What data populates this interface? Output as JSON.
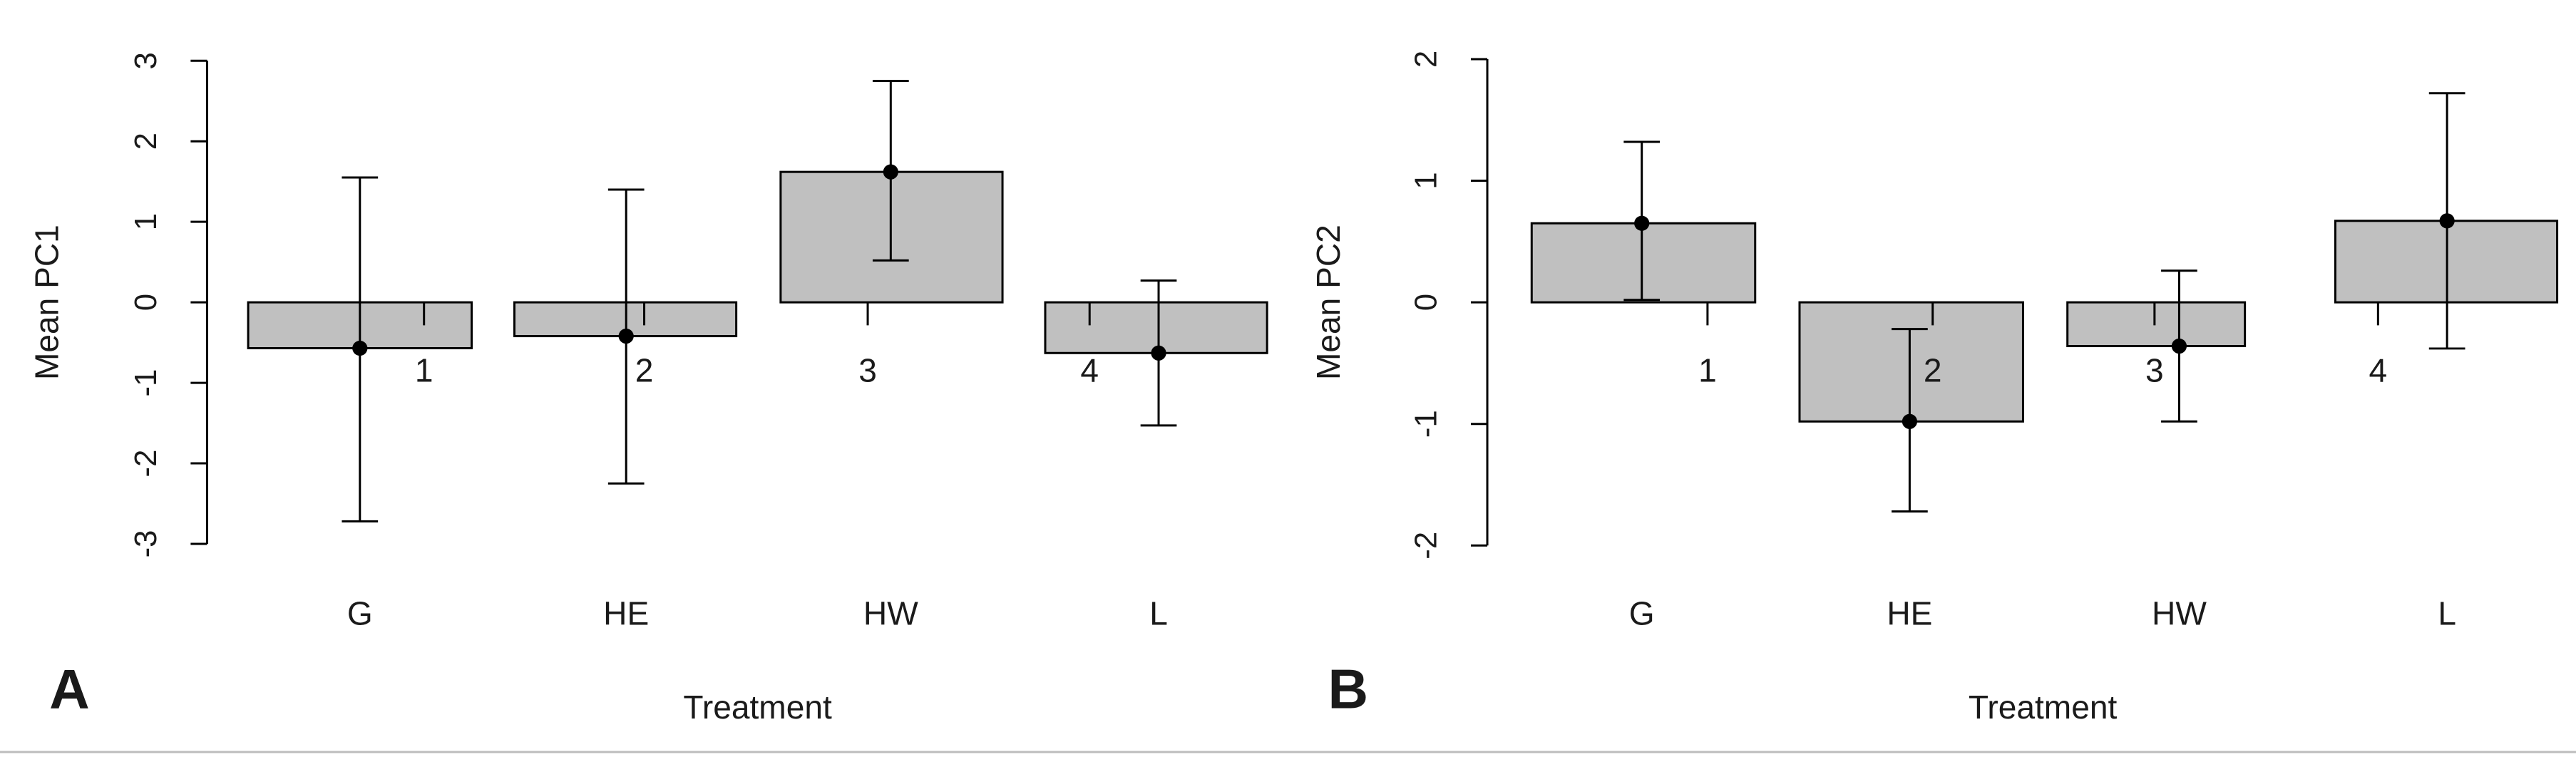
{
  "chart_data": [
    {
      "type": "bar",
      "panel_label": "A",
      "xlabel": "Treatment",
      "ylabel": "Mean PC1",
      "categories": [
        "G",
        "HE",
        "HW",
        "L"
      ],
      "values": [
        -0.57,
        -0.42,
        1.62,
        -0.63
      ],
      "error_upper": [
        1.55,
        1.4,
        2.75,
        0.27
      ],
      "error_lower": [
        -2.72,
        -2.25,
        0.52,
        -1.53
      ],
      "bar_numbers": [
        "1",
        "2",
        "3",
        "4"
      ],
      "yticks": [
        3,
        2,
        1,
        0,
        -1,
        -2,
        -3
      ],
      "ylim": [
        -3,
        3
      ],
      "bar_color": "#c0c0c0",
      "legend": "none",
      "grid": false
    },
    {
      "type": "bar",
      "panel_label": "B",
      "xlabel": "Treatment",
      "ylabel": "Mean PC2",
      "categories": [
        "G",
        "HE",
        "HW",
        "L"
      ],
      "values": [
        0.65,
        -0.98,
        -0.36,
        0.67
      ],
      "error_upper": [
        1.32,
        -0.22,
        0.26,
        1.72
      ],
      "error_lower": [
        0.02,
        -1.72,
        -0.98,
        -0.38
      ],
      "bar_numbers": [
        "1",
        "2",
        "3",
        "4"
      ],
      "yticks": [
        2,
        1,
        0,
        -1,
        -2
      ],
      "ylim": [
        -2,
        2
      ],
      "bar_color": "#c0c0c0",
      "legend": "none",
      "grid": false
    }
  ]
}
